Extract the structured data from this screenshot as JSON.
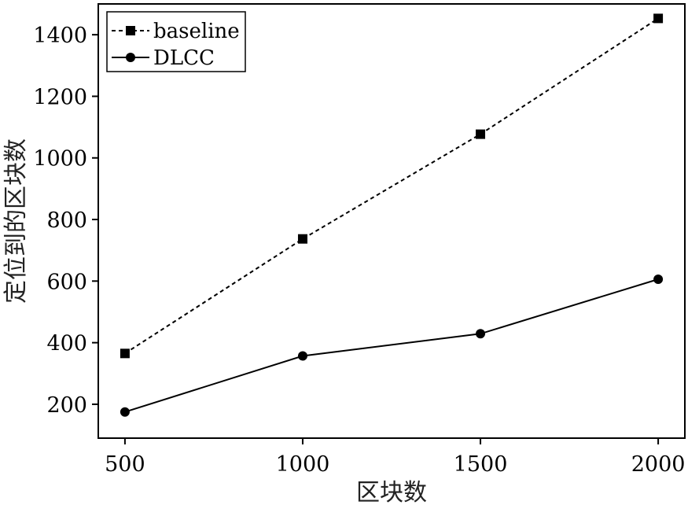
{
  "chart_data": {
    "type": "line",
    "title": "",
    "xlabel": "区块数",
    "ylabel": "定位到的区块数",
    "x": [
      500,
      1000,
      1500,
      2000
    ],
    "xlim": [
      425,
      2075
    ],
    "ylim": [
      90,
      1500
    ],
    "xticks": [
      500,
      1000,
      1500,
      2000
    ],
    "yticks": [
      200,
      400,
      600,
      800,
      1000,
      1200,
      1400
    ],
    "grid": false,
    "legend_position": "top-left",
    "series": [
      {
        "name": "baseline",
        "values": [
          365,
          737,
          1077,
          1453
        ],
        "line_style": "dashed",
        "marker": "square",
        "color": "#000000"
      },
      {
        "name": "DLCC",
        "values": [
          175,
          357,
          429,
          606
        ],
        "line_style": "solid",
        "marker": "circle",
        "color": "#000000"
      }
    ]
  }
}
